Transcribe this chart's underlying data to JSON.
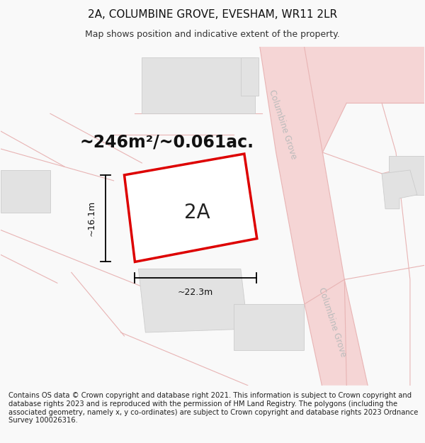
{
  "title_line1": "2A, COLUMBINE GROVE, EVESHAM, WR11 2LR",
  "title_line2": "Map shows position and indicative extent of the property.",
  "area_label": "~246m²/~0.061ac.",
  "plot_label": "2A",
  "width_label": "~22.3m",
  "height_label": "~16.1m",
  "footer_text": "Contains OS data © Crown copyright and database right 2021. This information is subject to Crown copyright and database rights 2023 and is reproduced with the permission of HM Land Registry. The polygons (including the associated geometry, namely x, y co-ordinates) are subject to Crown copyright and database rights 2023 Ordnance Survey 100026316.",
  "bg_color": "#f9f9f9",
  "map_bg": "#f8f8f8",
  "road_stroke": "#e8b4b4",
  "road_fill": "#f5d5d5",
  "building_fill": "#e2e2e2",
  "building_stroke": "#cccccc",
  "plot_fill": "#ffffff",
  "plot_border": "#dd0000",
  "street_label_color": "#bbbbbb",
  "title_fontsize": 11,
  "subtitle_fontsize": 9,
  "area_fontsize": 17,
  "plot_label_fontsize": 20,
  "measure_fontsize": 9,
  "footer_fontsize": 7.2,
  "street_label_fontsize": 8.5
}
